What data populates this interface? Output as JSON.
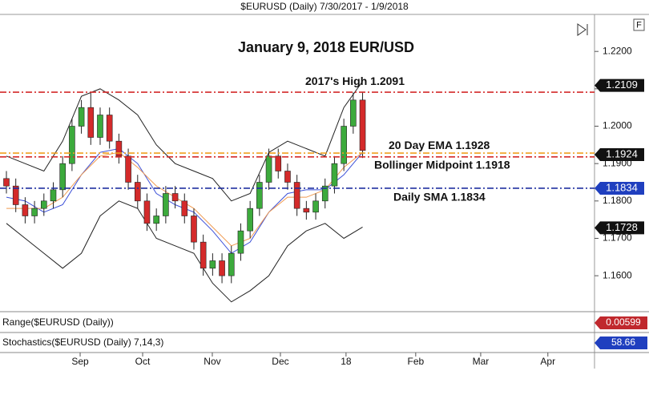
{
  "chart_data": {
    "type": "candlestick",
    "subtitle": "$EURUSD (Daily)  7/30/2017 - 1/9/2018",
    "title": "January 9, 2018 EUR/USD",
    "xlim": [
      0,
      189
    ],
    "ylim": [
      1.1506,
      1.2299
    ],
    "yticks": [
      {
        "value": 1.22,
        "label": "1.2200"
      },
      {
        "value": 1.21,
        "label": "1.2100"
      },
      {
        "value": 1.2,
        "label": "1.2000"
      },
      {
        "value": 1.19,
        "label": "1.1900"
      },
      {
        "value": 1.18,
        "label": "1.1800"
      },
      {
        "value": 1.17,
        "label": "1.1700"
      },
      {
        "value": 1.16,
        "label": "1.1600"
      }
    ],
    "xticks": [
      {
        "value": 23.6,
        "label": "Sep"
      },
      {
        "value": 43.6,
        "label": "Oct"
      },
      {
        "value": 65.9,
        "label": "Nov"
      },
      {
        "value": 87.7,
        "label": "Dec"
      },
      {
        "value": 108.7,
        "label": "18"
      },
      {
        "value": 131,
        "label": "Feb"
      },
      {
        "value": 151.8,
        "label": "Mar"
      },
      {
        "value": 173.3,
        "label": "Apr"
      }
    ],
    "x": [
      0,
      3,
      6,
      9,
      12,
      15,
      18,
      21,
      24,
      27,
      30,
      33,
      36,
      39,
      42,
      45,
      48,
      51,
      54,
      57,
      60,
      63,
      66,
      69,
      72,
      75,
      78,
      81,
      84,
      87,
      90,
      93,
      96,
      99,
      102,
      105,
      108,
      111,
      114
    ],
    "open": [
      1.186,
      1.184,
      1.179,
      1.176,
      1.178,
      1.18,
      1.183,
      1.19,
      1.2,
      1.205,
      1.197,
      1.203,
      1.196,
      1.192,
      1.185,
      1.18,
      1.174,
      1.176,
      1.182,
      1.18,
      1.176,
      1.169,
      1.162,
      1.164,
      1.16,
      1.166,
      1.172,
      1.178,
      1.185,
      1.192,
      1.188,
      1.185,
      1.178,
      1.177,
      1.18,
      1.184,
      1.19,
      1.2,
      1.207
    ],
    "high": [
      1.188,
      1.186,
      1.181,
      1.18,
      1.182,
      1.185,
      1.192,
      1.202,
      1.207,
      1.2092,
      1.205,
      1.205,
      1.198,
      1.194,
      1.187,
      1.182,
      1.178,
      1.184,
      1.184,
      1.182,
      1.178,
      1.171,
      1.166,
      1.166,
      1.168,
      1.174,
      1.18,
      1.187,
      1.194,
      1.194,
      1.19,
      1.187,
      1.18,
      1.182,
      1.186,
      1.192,
      1.202,
      1.209,
      1.209
    ],
    "low": [
      1.182,
      1.177,
      1.174,
      1.174,
      1.176,
      1.178,
      1.181,
      1.188,
      1.198,
      1.195,
      1.195,
      1.194,
      1.19,
      1.183,
      1.178,
      1.172,
      1.172,
      1.174,
      1.178,
      1.174,
      1.167,
      1.16,
      1.16,
      1.158,
      1.158,
      1.164,
      1.17,
      1.176,
      1.183,
      1.186,
      1.183,
      1.176,
      1.175,
      1.175,
      1.178,
      1.182,
      1.188,
      1.198,
      1.1915
    ],
    "close": [
      1.184,
      1.179,
      1.176,
      1.178,
      1.18,
      1.183,
      1.19,
      1.2,
      1.205,
      1.197,
      1.203,
      1.196,
      1.192,
      1.185,
      1.18,
      1.174,
      1.176,
      1.182,
      1.18,
      1.176,
      1.169,
      1.162,
      1.164,
      1.16,
      1.166,
      1.172,
      1.178,
      1.185,
      1.192,
      1.188,
      1.185,
      1.178,
      1.177,
      1.18,
      1.184,
      1.19,
      1.2,
      1.207,
      1.1935
    ],
    "up_color": "#3caa3c",
    "down_color": "#d42a2a",
    "line_x": [
      0,
      6,
      12,
      18,
      24,
      30,
      36,
      42,
      48,
      54,
      60,
      66,
      72,
      78,
      84,
      90,
      96,
      102,
      108,
      114
    ],
    "lines": [
      {
        "color": "#222222",
        "values": [
          1.192,
          1.19,
          1.188,
          1.196,
          1.208,
          1.21,
          1.207,
          1.203,
          1.195,
          1.19,
          1.188,
          1.186,
          1.18,
          1.182,
          1.193,
          1.196,
          1.194,
          1.192,
          1.205,
          1.212
        ]
      },
      {
        "color": "#222222",
        "values": [
          1.174,
          1.17,
          1.166,
          1.162,
          1.166,
          1.176,
          1.18,
          1.178,
          1.17,
          1.168,
          1.166,
          1.158,
          1.153,
          1.156,
          1.16,
          1.168,
          1.172,
          1.174,
          1.17,
          1.173
        ]
      },
      {
        "color": "#3b4fd8",
        "values": [
          1.181,
          1.18,
          1.177,
          1.179,
          1.187,
          1.193,
          1.194,
          1.19,
          1.182,
          1.179,
          1.177,
          1.172,
          1.166,
          1.169,
          1.177,
          1.182,
          1.183,
          1.183,
          1.187,
          1.193
        ]
      },
      {
        "color": "#f09a50",
        "values": [
          1.178,
          1.178,
          1.178,
          1.181,
          1.187,
          1.192,
          1.193,
          1.189,
          1.184,
          1.181,
          1.178,
          1.173,
          1.168,
          1.17,
          1.177,
          1.181,
          1.181,
          1.183,
          1.189,
          1.193
        ]
      }
    ],
    "levels": [
      {
        "value": 1.2091,
        "color": "#d42a2a",
        "label": "2017's High 1.2091"
      },
      {
        "value": 1.1928,
        "color": "#f0a020",
        "label": "20 Day EMA 1.1928"
      },
      {
        "value": 1.1918,
        "color": "#d42a2a",
        "label": "Bollinger Midpoint 1.1918"
      },
      {
        "value": 1.1834,
        "color": "#2030a0",
        "label": "Daily SMA 1.1834"
      }
    ],
    "price_tags": [
      {
        "value": 1.2109,
        "color": "#111111"
      },
      {
        "value": 1.1924,
        "color": "#111111"
      },
      {
        "value": 1.1834,
        "color": "#1f3fbf"
      },
      {
        "value": 1.1728,
        "color": "#111111"
      }
    ],
    "panels": [
      {
        "label": "Range($EURUSD (Daily))",
        "value": 0.00599,
        "color": "#c0282d"
      },
      {
        "label": "Stochastics($EURUSD (Daily) 7,14,3)",
        "value": 58.66,
        "color": "#1f3fbf"
      }
    ]
  }
}
